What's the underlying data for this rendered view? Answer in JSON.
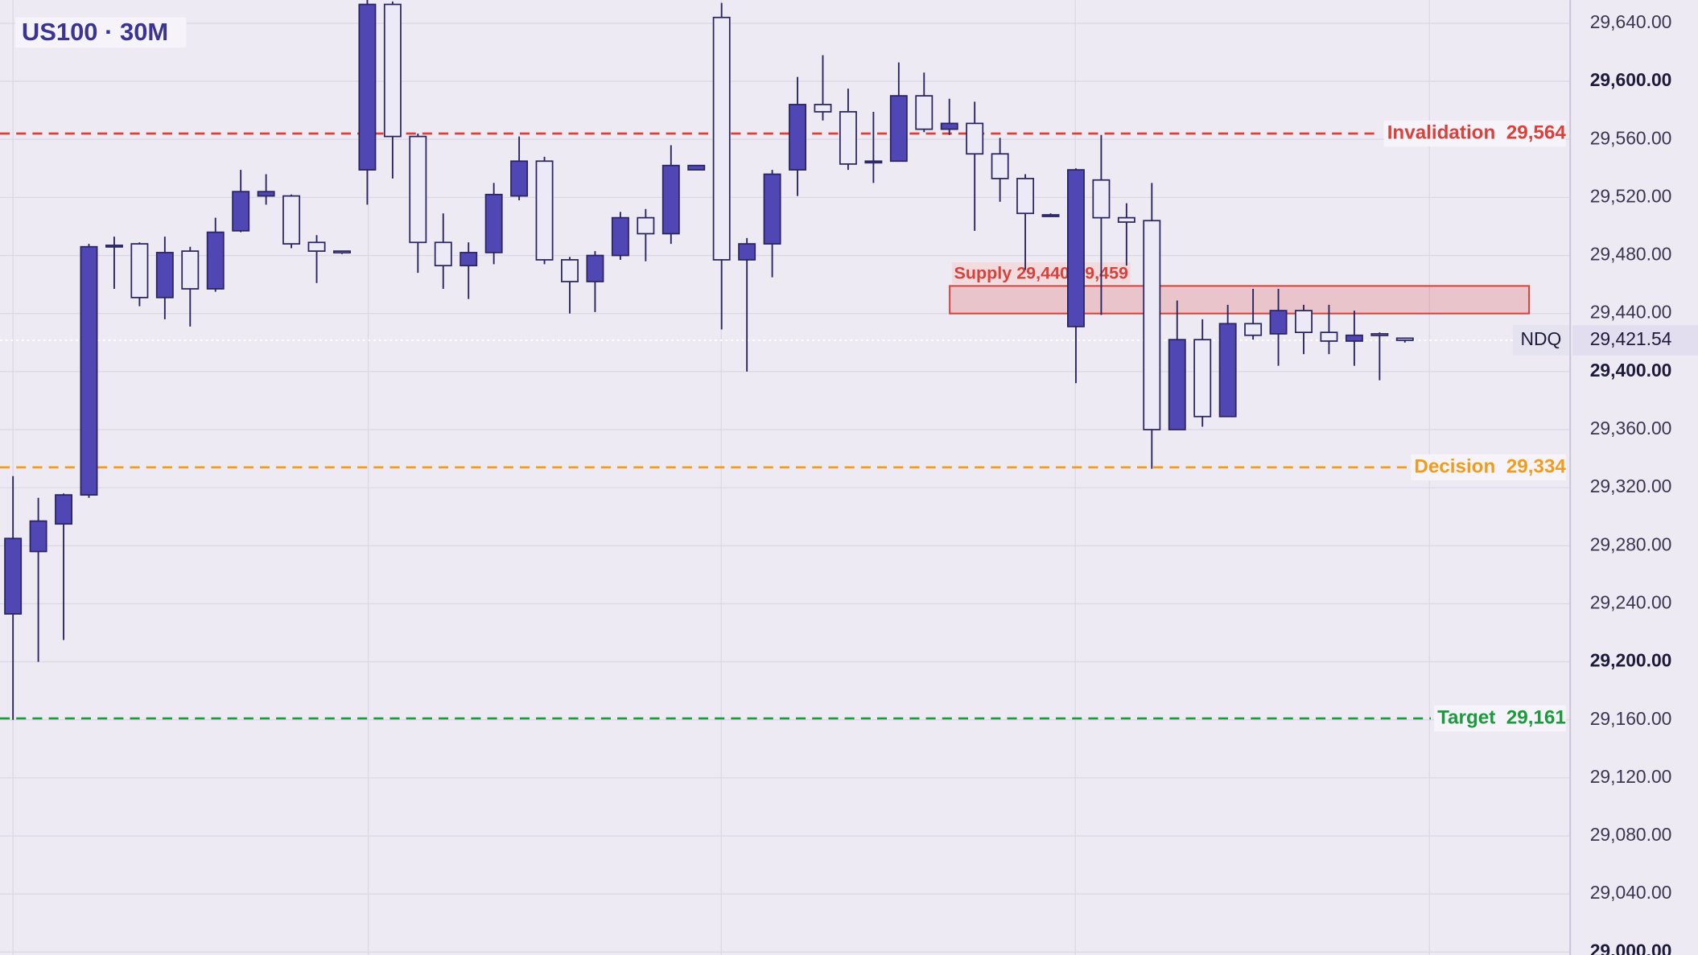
{
  "chart_data": {
    "type": "candlestick",
    "title": "US100 · 30M",
    "symbol": "NDQ",
    "last_price": {
      "value": 29421.54,
      "label": "29,421.54"
    },
    "ylim": [
      28998,
      29656
    ],
    "yticks": [
      {
        "value": 29000,
        "label": "29,000.00"
      },
      {
        "value": 29040,
        "label": "29,040.00"
      },
      {
        "value": 29080,
        "label": "29,080.00"
      },
      {
        "value": 29120,
        "label": "29,120.00"
      },
      {
        "value": 29160,
        "label": "29,160.00"
      },
      {
        "value": 29200,
        "label": "29,200.00"
      },
      {
        "value": 29240,
        "label": "29,240.00"
      },
      {
        "value": 29280,
        "label": "29,280.00"
      },
      {
        "value": 29320,
        "label": "29,320.00"
      },
      {
        "value": 29360,
        "label": "29,360.00"
      },
      {
        "value": 29400,
        "label": "29,400.00"
      },
      {
        "value": 29440,
        "label": "29,440.00"
      },
      {
        "value": 29480,
        "label": "29,480.00"
      },
      {
        "value": 29520,
        "label": "29,520.00"
      },
      {
        "value": 29560,
        "label": "29,560.00"
      },
      {
        "value": 29600,
        "label": "29,600.00"
      },
      {
        "value": 29640,
        "label": "29,640.00"
      }
    ],
    "grid": true,
    "up_color": "#5046b4",
    "down_color": "#eceaf7",
    "edge_color": "#2a2560",
    "series": {
      "open": [
        29233,
        29276,
        29295,
        29315,
        29486,
        29488,
        29451,
        29483,
        29457,
        29497,
        29521,
        29521,
        29489,
        29483,
        29539,
        29653,
        29562,
        29489,
        29473,
        29482,
        29521,
        29545,
        29477,
        29462,
        29480,
        29506,
        29495,
        29539,
        29644,
        29477,
        29488,
        29539,
        29584,
        29579,
        29544,
        29545,
        29590,
        29567,
        29571,
        29550,
        29533,
        29508,
        29431,
        29532,
        29506,
        29504,
        29360,
        29422,
        29369,
        29433,
        29426,
        29442,
        29427,
        29421,
        29426,
        29423
      ],
      "high": [
        29328,
        29313,
        29316,
        29488,
        29493,
        29489,
        29493,
        29486,
        29506,
        29539,
        29536,
        29522,
        29494,
        29483,
        29660,
        29655,
        29564,
        29509,
        29489,
        29530,
        29562,
        29548,
        29479,
        29483,
        29510,
        29512,
        29556,
        29542,
        29654,
        29492,
        29539,
        29603,
        29618,
        29595,
        29579,
        29613,
        29606,
        29588,
        29586,
        29561,
        29536,
        29509,
        29540,
        29563,
        29516,
        29530,
        29449,
        29436,
        29446,
        29457,
        29457,
        29446,
        29446,
        29442,
        29427,
        29423
      ],
      "low": [
        29160,
        29200,
        29215,
        29313,
        29457,
        29445,
        29436,
        29431,
        29455,
        29496,
        29515,
        29485,
        29461,
        29481,
        29515,
        29533,
        29468,
        29457,
        29450,
        29474,
        29518,
        29474,
        29440,
        29441,
        29477,
        29476,
        29488,
        29539,
        29429,
        29400,
        29465,
        29521,
        29573,
        29539,
        29530,
        29545,
        29565,
        29563,
        29497,
        29517,
        29470,
        29507,
        29392,
        29439,
        29473,
        29333,
        29360,
        29362,
        29369,
        29422,
        29404,
        29412,
        29412,
        29404,
        29394,
        29420
      ],
      "close": [
        29285,
        29297,
        29315,
        29486,
        29487,
        29451,
        29482,
        29457,
        29496,
        29524,
        29524,
        29488,
        29483,
        29482,
        29653,
        29562,
        29489,
        29473,
        29482,
        29522,
        29545,
        29477,
        29462,
        29480,
        29506,
        29495,
        29542,
        29542,
        29477,
        29488,
        29536,
        29584,
        29579,
        29543,
        29545,
        29590,
        29567,
        29571,
        29550,
        29533,
        29509,
        29508,
        29539,
        29506,
        29503,
        29360,
        29422,
        29369,
        29433,
        29425,
        29442,
        29427,
        29421,
        29425,
        29425,
        29421.54
      ]
    },
    "levels": [
      {
        "name": "Invalidation",
        "value": 29564,
        "value_label": "29,564",
        "color": "#d9413a"
      },
      {
        "name": "Decision",
        "value": 29334,
        "value_label": "29,334",
        "color": "#ef9d1c"
      },
      {
        "name": "Target",
        "value": 29161,
        "value_label": "29,161",
        "color": "#1a9b3c"
      }
    ],
    "zone": {
      "label": "Supply 29,440-29,459",
      "low": 29440,
      "high": 29459,
      "color": "#d9413a"
    }
  }
}
